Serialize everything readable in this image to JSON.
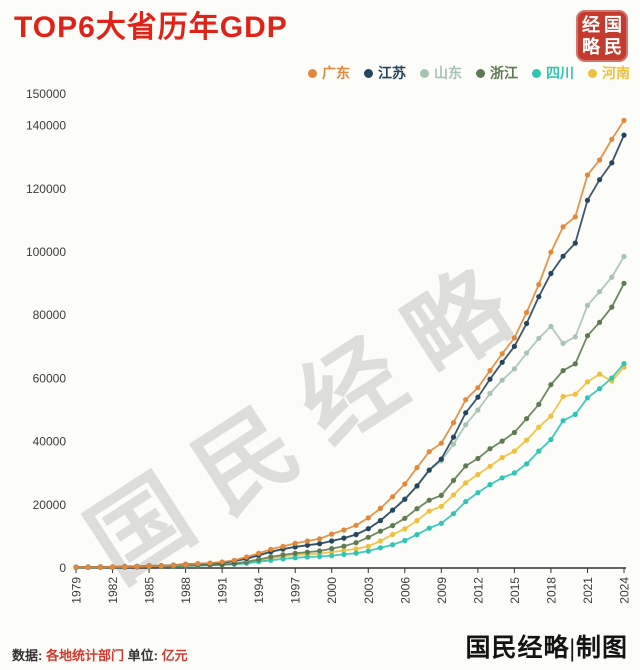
{
  "page": {
    "title": "TOP6大省历年GDP",
    "title_color": "#e02318",
    "seal": {
      "chars": [
        "经",
        "国",
        "略",
        "民"
      ],
      "color": "#c23b2e"
    },
    "watermark": {
      "text": "国民经略"
    },
    "footer": {
      "source_label": "数据:",
      "source_value": "各地统计部门",
      "unit_label": "单位:",
      "unit_value": "亿元",
      "credit": "国民经略|制图"
    }
  },
  "chart_data": {
    "type": "line",
    "title": "TOP6大省历年GDP",
    "unit": "亿元",
    "grid": false,
    "legend_position": "top",
    "x_range": [
      1979,
      2024
    ],
    "x": [
      1979,
      1980,
      1981,
      1982,
      1983,
      1984,
      1985,
      1986,
      1987,
      1988,
      1989,
      1990,
      1991,
      1992,
      1993,
      1994,
      1995,
      1996,
      1997,
      1998,
      1999,
      2000,
      2001,
      2002,
      2003,
      2004,
      2005,
      2006,
      2007,
      2008,
      2009,
      2010,
      2011,
      2012,
      2013,
      2014,
      2015,
      2016,
      2017,
      2018,
      2019,
      2020,
      2021,
      2022,
      2023,
      2024
    ],
    "x_tick_labels": [
      1979,
      1982,
      1985,
      1988,
      1991,
      1994,
      1997,
      2000,
      2003,
      2006,
      2009,
      2012,
      2015,
      2018,
      2021,
      2024
    ],
    "ylim": [
      0,
      150000
    ],
    "y_ticks": [
      0,
      20000,
      40000,
      60000,
      80000,
      100000,
      120000,
      140000,
      150000
    ],
    "series": [
      {
        "name": "广东",
        "color": "#e2883a",
        "values": [
          209,
          249,
          290,
          339,
          368,
          458,
          577,
          667,
          846,
          1155,
          1381,
          1559,
          1893,
          2447,
          3469,
          4619,
          5933,
          6835,
          7775,
          8530,
          9251,
          10741,
          12039,
          13502,
          15845,
          18865,
          22557,
          26588,
          31777,
          36797,
          39483,
          46013,
          53246,
          57068,
          62475,
          67810,
          72813,
          80855,
          89705,
          99945,
          107987,
          111152,
          124370,
          129119,
          135673,
          141634
        ]
      },
      {
        "name": "江苏",
        "color": "#26455f",
        "values": [
          299,
          320,
          350,
          390,
          438,
          519,
          652,
          745,
          922,
          1209,
          1322,
          1417,
          1601,
          2136,
          2998,
          4057,
          5155,
          6004,
          6680,
          7200,
          7698,
          8554,
          9457,
          10607,
          12443,
          15004,
          18306,
          21743,
          26018,
          30982,
          34457,
          41425,
          49110,
          54058,
          59753,
          65088,
          70116,
          77388,
          85870,
          93207,
          98656,
          102807,
          116364,
          122876,
          128222,
          137008
        ]
      },
      {
        "name": "山东",
        "color": "#a6c3b3",
        "values": [
          247,
          292,
          330,
          395,
          460,
          572,
          680,
          742,
          892,
          1118,
          1293,
          1511,
          1810,
          2196,
          2770,
          3872,
          5002,
          5960,
          6650,
          7162,
          7662,
          8542,
          9438,
          10552,
          12436,
          15021,
          18367,
          21900,
          25777,
          30933,
          33897,
          39170,
          45362,
          50013,
          55230,
          59427,
          63002,
          68024,
          72678,
          76470,
          71068,
          73129,
          83096,
          87435,
          92069,
          98566
        ]
      },
      {
        "name": "浙江",
        "color": "#5e7a52",
        "values": [
          157,
          180,
          205,
          234,
          257,
          323,
          429,
          502,
          606,
          770,
          849,
          905,
          1089,
          1375,
          1926,
          2689,
          3525,
          4146,
          4638,
          4987,
          5365,
          6141,
          6898,
          8003,
          9705,
          11648,
          13417,
          15718,
          18753,
          21462,
          22990,
          27722,
          32318,
          34665,
          37756,
          40173,
          42886,
          47251,
          51768,
          58003,
          62462,
          64613,
          73516,
          77715,
          82553,
          90100
        ]
      },
      {
        "name": "四川",
        "color": "#2ec5b2",
        "values": [
          184,
          229,
          243,
          278,
          319,
          380,
          421,
          459,
          540,
          659,
          756,
          891,
          1016,
          1177,
          1486,
          2001,
          2443,
          2871,
          3241,
          3474,
          3649,
          3928,
          4293,
          4725,
          5333,
          6380,
          7385,
          8690,
          10562,
          12601,
          14151,
          17185,
          21027,
          23873,
          26392,
          28537,
          30053,
          32935,
          36980,
          40678,
          46616,
          48599,
          53851,
          56750,
          60133,
          64697
        ]
      },
      {
        "name": "河南",
        "color": "#f0c03c",
        "values": [
          194,
          229,
          250,
          263,
          328,
          402,
          452,
          503,
          612,
          750,
          869,
          935,
          1046,
          1280,
          1663,
          2224,
          3003,
          3635,
          4079,
          4346,
          4518,
          5053,
          5533,
          6035,
          6868,
          8554,
          10587,
          12363,
          15012,
          18019,
          19480,
          23092,
          26931,
          29599,
          32191,
          34938,
          37002,
          40472,
          44553,
          48056,
          54259,
          54997,
          58887,
          61345,
          59132,
          63590
        ]
      }
    ]
  }
}
